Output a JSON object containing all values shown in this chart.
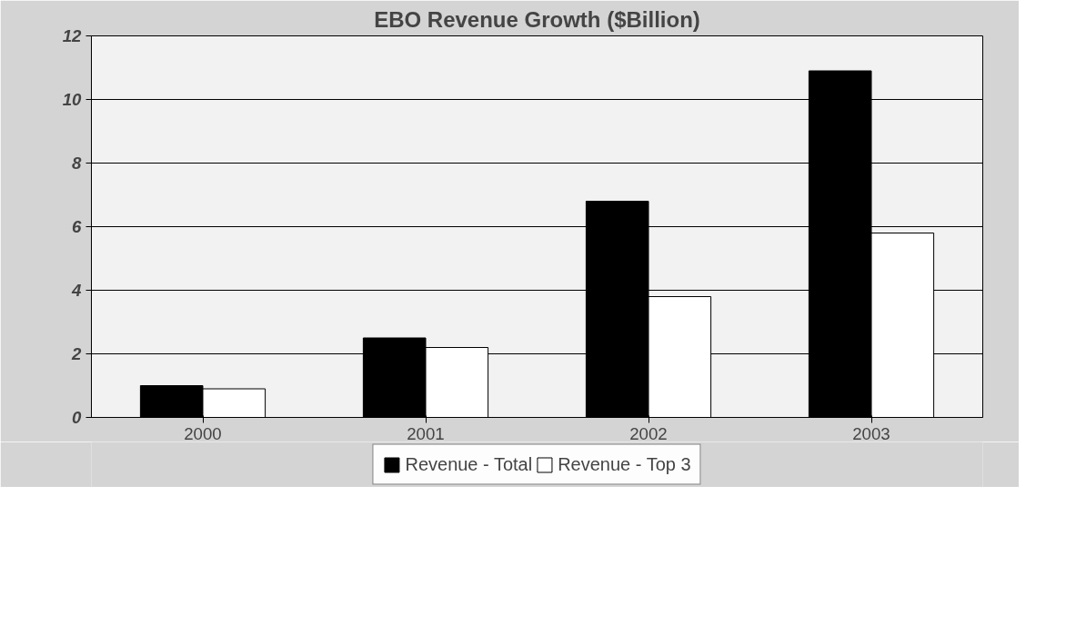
{
  "chart_data": {
    "type": "bar",
    "title": "EBO Revenue Growth ($Billion)",
    "categories": [
      "2000",
      "2001",
      "2002",
      "2003"
    ],
    "series": [
      {
        "name": "Revenue - Total",
        "color": "#000000",
        "values": [
          1.0,
          2.5,
          6.8,
          10.9
        ]
      },
      {
        "name": "Revenue - Top 3",
        "color": "#ffffff",
        "values": [
          0.9,
          2.2,
          3.8,
          5.8
        ]
      }
    ],
    "ylim": [
      0,
      12
    ],
    "yticks": [
      0,
      2,
      4,
      6,
      8,
      10,
      12
    ],
    "grid": "y",
    "legend": "bottom"
  }
}
